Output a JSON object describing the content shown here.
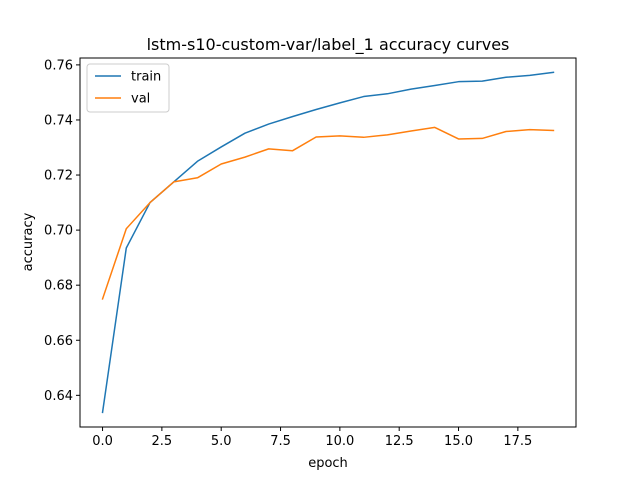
{
  "chart_data": {
    "type": "line",
    "title": "lstm-s10-custom-var/label_1 accuracy curves",
    "xlabel": "epoch",
    "ylabel": "accuracy",
    "xlim": [
      -0.95,
      19.95
    ],
    "ylim": [
      0.6285,
      0.7625
    ],
    "xticks": [
      0.0,
      2.5,
      5.0,
      7.5,
      10.0,
      12.5,
      15.0,
      17.5
    ],
    "xtick_labels": [
      "0.0",
      "2.5",
      "5.0",
      "7.5",
      "10.0",
      "12.5",
      "15.0",
      "17.5"
    ],
    "yticks": [
      0.64,
      0.66,
      0.68,
      0.7,
      0.72,
      0.74,
      0.76
    ],
    "ytick_labels": [
      "0.64",
      "0.66",
      "0.68",
      "0.70",
      "0.72",
      "0.74",
      "0.76"
    ],
    "grid": false,
    "legend_position": "top-left",
    "x": [
      0,
      1,
      2,
      3,
      4,
      5,
      6,
      7,
      8,
      9,
      10,
      11,
      12,
      13,
      14,
      15,
      16,
      17,
      18,
      19
    ],
    "series": [
      {
        "name": "train",
        "color": "#1f77b4",
        "values": [
          0.6338,
          0.6935,
          0.71,
          0.7175,
          0.725,
          0.7302,
          0.7352,
          0.7385,
          0.7412,
          0.7438,
          0.7462,
          0.7485,
          0.7495,
          0.7512,
          0.7525,
          0.7539,
          0.7541,
          0.7555,
          0.7562,
          0.7573
        ]
      },
      {
        "name": "val",
        "color": "#ff7f0e",
        "values": [
          0.675,
          0.7005,
          0.71,
          0.7175,
          0.719,
          0.724,
          0.7265,
          0.7295,
          0.7288,
          0.7338,
          0.7342,
          0.7337,
          0.7346,
          0.736,
          0.7373,
          0.7331,
          0.7333,
          0.7358,
          0.7365,
          0.7362
        ]
      }
    ]
  }
}
